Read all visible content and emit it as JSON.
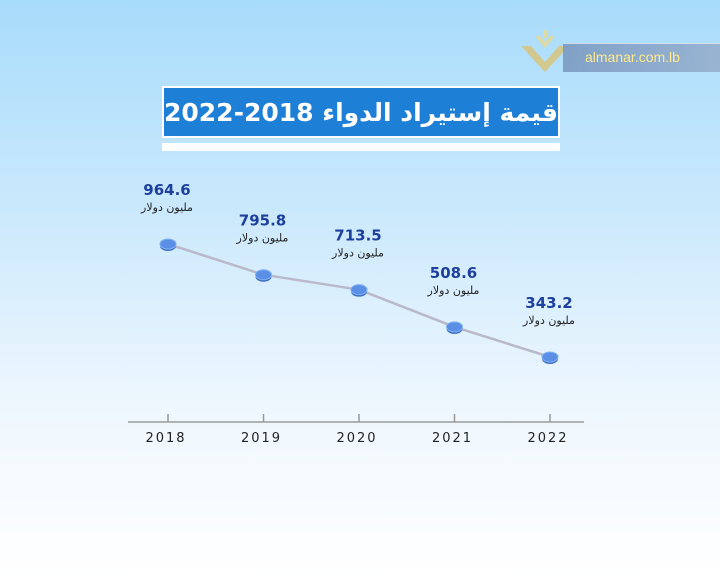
{
  "logo": {
    "text": "almanar.com.lb"
  },
  "title": "قيمة إستيراد الدواء 2018-2022",
  "chart_data": {
    "type": "line",
    "categories": [
      "2018",
      "2019",
      "2020",
      "2021",
      "2022"
    ],
    "values": [
      964.6,
      795.8,
      713.5,
      508.6,
      343.2
    ],
    "value_labels": [
      "964.6",
      "795.8",
      "713.5",
      "508.6",
      "343.2"
    ],
    "unit_label": "مليون دولار",
    "title": "قيمة إستيراد الدواء 2018-2022",
    "xlabel": "",
    "ylabel": "",
    "grid": false,
    "colors": {
      "line": "#b9b9c9",
      "marker": "#5b8fe6",
      "value_text": "#1d3f9e",
      "axis": "#999999"
    }
  }
}
